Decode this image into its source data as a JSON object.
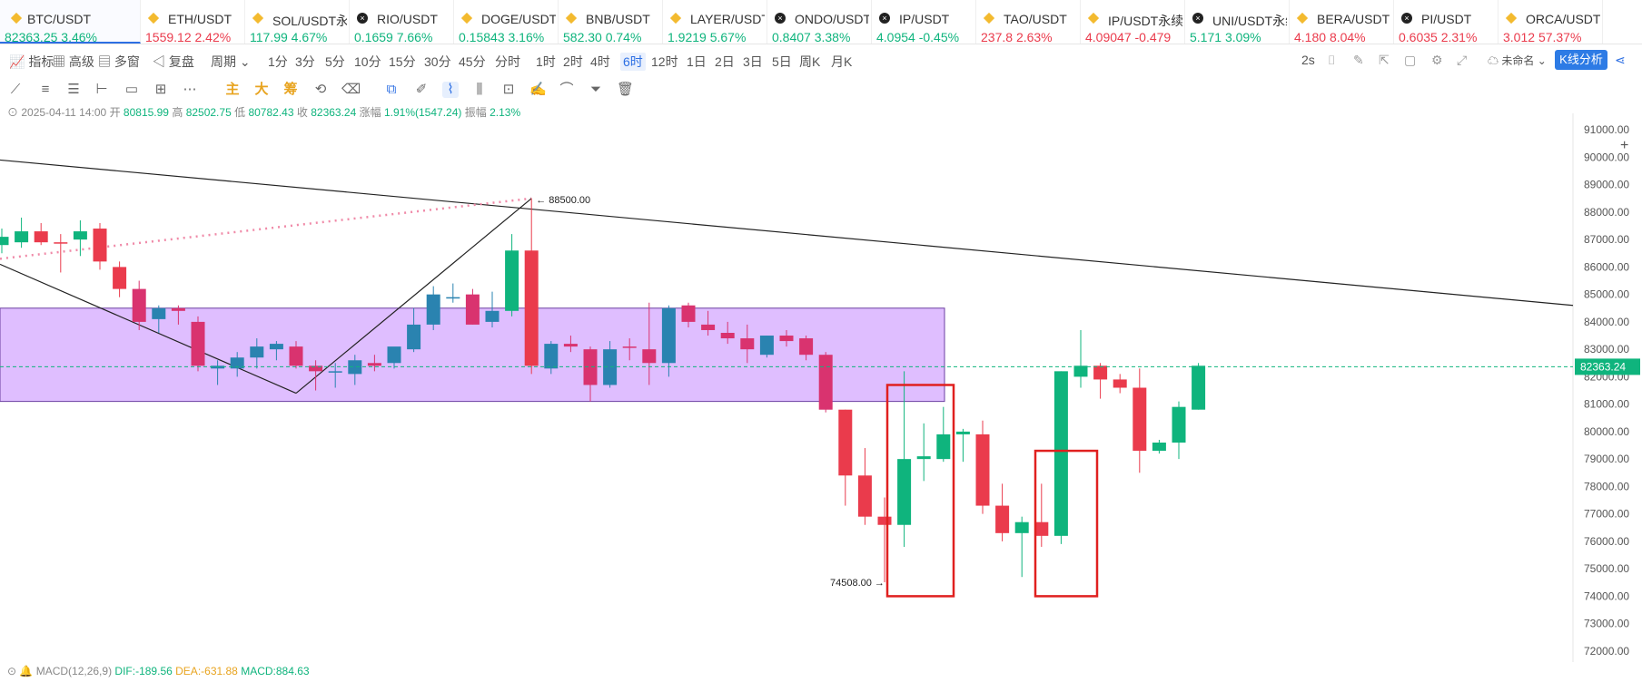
{
  "tickers": [
    {
      "symbol": "BTC/USDT",
      "price": "82363.25",
      "change": "3.46%",
      "dir": "up",
      "icon": "diamond-icon",
      "active": true
    },
    {
      "symbol": "ETH/USDT",
      "price": "1559.12",
      "change": "2.42%",
      "dir": "down",
      "icon": "diamond-icon"
    },
    {
      "symbol": "SOL/USDT永",
      "price": "117.99",
      "change": "4.67%",
      "dir": "up",
      "icon": "diamond-icon"
    },
    {
      "symbol": "RIO/USDT",
      "price": "0.1659",
      "change": "7.66%",
      "dir": "up",
      "icon": "x-circle-icon"
    },
    {
      "symbol": "DOGE/USDT",
      "price": "0.15843",
      "change": "3.16%",
      "dir": "up",
      "icon": "diamond-icon"
    },
    {
      "symbol": "BNB/USDT",
      "price": "582.30",
      "change": "0.74%",
      "dir": "up",
      "icon": "diamond-icon"
    },
    {
      "symbol": "LAYER/USDT",
      "price": "1.9219",
      "change": "5.67%",
      "dir": "up",
      "icon": "diamond-icon"
    },
    {
      "symbol": "ONDO/USDT",
      "price": "0.8407",
      "change": "3.38%",
      "dir": "up",
      "icon": "x-circle-icon"
    },
    {
      "symbol": "IP/USDT",
      "price": "4.0954",
      "change": "-0.45%",
      "dir": "up",
      "icon": "x-circle-icon"
    },
    {
      "symbol": "TAO/USDT",
      "price": "237.8",
      "change": "2.63%",
      "dir": "down",
      "icon": "diamond-icon"
    },
    {
      "symbol": "IP/USDT永续",
      "price": "4.09047",
      "change": "-0.479",
      "dir": "down",
      "icon": "diamond-icon"
    },
    {
      "symbol": "UNI/USDT永续",
      "price": "5.171",
      "change": "3.09%",
      "dir": "up",
      "icon": "x-circle-icon"
    },
    {
      "symbol": "BERA/USDT",
      "price": "4.180",
      "change": "8.04%",
      "dir": "down",
      "icon": "diamond-icon"
    },
    {
      "symbol": "PI/USDT",
      "price": "0.6035",
      "change": "2.31%",
      "dir": "down",
      "icon": "x-circle-icon"
    },
    {
      "symbol": "ORCA/USDT",
      "price": "3.012",
      "change": "57.37%",
      "dir": "down",
      "icon": "diamond-icon"
    }
  ],
  "toolbar": {
    "indicators": "指标",
    "advanced": "高级",
    "multi_window": "多窗",
    "replay": "复盘",
    "period": "周期",
    "intervals": [
      "1分",
      "3分",
      "5分",
      "10分",
      "15分",
      "30分",
      "45分",
      "分时",
      "1时",
      "2时",
      "4时",
      "6时",
      "12时",
      "1日",
      "2日",
      "3日",
      "5日",
      "周K",
      "月K"
    ],
    "selected_interval": "6时",
    "refresh": "2s",
    "layout_name": "未命名",
    "kline_button": "K线分析"
  },
  "drawing_tools": {
    "main": "主",
    "big": "大",
    "chip": "筹"
  },
  "info": {
    "datetime": "2025-04-11 14:00",
    "open_label": "开",
    "open": "80815.99",
    "high_label": "高",
    "high": "82502.75",
    "low_label": "低",
    "low": "80782.43",
    "close_label": "收",
    "close": "82363.24",
    "change_label": "涨幅",
    "change": "1.91%(1547.24)",
    "amp_label": "振幅",
    "amp": "2.13%"
  },
  "macd": {
    "label": "MACD(12,26,9)",
    "dif": "DIF:-189.56",
    "dea": "DEA:-631.88",
    "macd": "MACD:884.63"
  },
  "colors": {
    "up": "#0fb47d",
    "down": "#ea3b4c",
    "blue": "#2a83b0",
    "pink": "#d9336f",
    "zone": "#d9b3ff",
    "box": "#e0201f"
  },
  "chart_data": {
    "type": "candlestick",
    "ylim": [
      71600,
      91600
    ],
    "y_ticks": [
      91000,
      90000,
      89000,
      88000,
      87000,
      86000,
      85000,
      84000,
      83000,
      82000,
      81000,
      80000,
      79000,
      78000,
      77000,
      76000,
      75000,
      74000,
      73000,
      72000
    ],
    "last_price": 82363.24,
    "last_price_label": "82363.24",
    "high_annotation": {
      "value": 88500,
      "label": "88500.00"
    },
    "low_annotation": {
      "value": 74508,
      "label": "74508.00"
    },
    "zone": {
      "top": 84500,
      "bottom": 81100
    },
    "candles": [
      {
        "o": 86800,
        "h": 87400,
        "l": 86500,
        "c": 87100,
        "k": "up"
      },
      {
        "o": 86900,
        "h": 87800,
        "l": 86700,
        "c": 87300,
        "k": "up"
      },
      {
        "o": 87300,
        "h": 87600,
        "l": 86800,
        "c": 86900,
        "k": "down"
      },
      {
        "o": 86900,
        "h": 87200,
        "l": 85800,
        "c": 86900,
        "k": "down"
      },
      {
        "o": 87000,
        "h": 87700,
        "l": 86400,
        "c": 87300,
        "k": "up"
      },
      {
        "o": 87400,
        "h": 87600,
        "l": 85900,
        "c": 86200,
        "k": "down"
      },
      {
        "o": 86000,
        "h": 86200,
        "l": 84900,
        "c": 85200,
        "k": "down"
      },
      {
        "o": 85200,
        "h": 85500,
        "l": 83700,
        "c": 84000,
        "k": "pink"
      },
      {
        "o": 84100,
        "h": 84600,
        "l": 83600,
        "c": 84500,
        "k": "blue"
      },
      {
        "o": 84500,
        "h": 84600,
        "l": 83900,
        "c": 84400,
        "k": "pink"
      },
      {
        "o": 84000,
        "h": 84200,
        "l": 82200,
        "c": 82400,
        "k": "pink"
      },
      {
        "o": 82300,
        "h": 82600,
        "l": 81700,
        "c": 82400,
        "k": "blue"
      },
      {
        "o": 82300,
        "h": 82900,
        "l": 82000,
        "c": 82700,
        "k": "blue"
      },
      {
        "o": 82700,
        "h": 83400,
        "l": 82300,
        "c": 83100,
        "k": "blue"
      },
      {
        "o": 83000,
        "h": 83300,
        "l": 82600,
        "c": 83200,
        "k": "blue"
      },
      {
        "o": 83100,
        "h": 83300,
        "l": 82300,
        "c": 82400,
        "k": "pink"
      },
      {
        "o": 82400,
        "h": 82600,
        "l": 81500,
        "c": 82200,
        "k": "pink"
      },
      {
        "o": 82200,
        "h": 82500,
        "l": 81600,
        "c": 82200,
        "k": "blue"
      },
      {
        "o": 82100,
        "h": 82800,
        "l": 81700,
        "c": 82600,
        "k": "blue"
      },
      {
        "o": 82500,
        "h": 82800,
        "l": 82200,
        "c": 82400,
        "k": "pink"
      },
      {
        "o": 82500,
        "h": 83000,
        "l": 82300,
        "c": 83100,
        "k": "blue"
      },
      {
        "o": 83000,
        "h": 84500,
        "l": 82900,
        "c": 83900,
        "k": "blue"
      },
      {
        "o": 83900,
        "h": 85300,
        "l": 83700,
        "c": 85000,
        "k": "blue"
      },
      {
        "o": 84900,
        "h": 85400,
        "l": 84700,
        "c": 84900,
        "k": "blue"
      },
      {
        "o": 85000,
        "h": 85200,
        "l": 83900,
        "c": 83900,
        "k": "pink"
      },
      {
        "o": 84000,
        "h": 85100,
        "l": 83800,
        "c": 84400,
        "k": "blue"
      },
      {
        "o": 84400,
        "h": 87200,
        "l": 84200,
        "c": 86600,
        "k": "up"
      },
      {
        "o": 86600,
        "h": 88500,
        "l": 82100,
        "c": 82400,
        "k": "down"
      },
      {
        "o": 82300,
        "h": 83300,
        "l": 82100,
        "c": 83200,
        "k": "blue"
      },
      {
        "o": 83100,
        "h": 83500,
        "l": 82900,
        "c": 83200,
        "k": "pink"
      },
      {
        "o": 83000,
        "h": 83100,
        "l": 81100,
        "c": 81700,
        "k": "pink"
      },
      {
        "o": 81700,
        "h": 83300,
        "l": 81600,
        "c": 83000,
        "k": "blue"
      },
      {
        "o": 83100,
        "h": 83400,
        "l": 82600,
        "c": 83100,
        "k": "pink"
      },
      {
        "o": 83000,
        "h": 84700,
        "l": 81700,
        "c": 82500,
        "k": "pink"
      },
      {
        "o": 82500,
        "h": 84600,
        "l": 82000,
        "c": 84500,
        "k": "blue"
      },
      {
        "o": 84600,
        "h": 84700,
        "l": 83800,
        "c": 84000,
        "k": "pink"
      },
      {
        "o": 83900,
        "h": 84400,
        "l": 83500,
        "c": 83700,
        "k": "pink"
      },
      {
        "o": 83600,
        "h": 84000,
        "l": 83200,
        "c": 83400,
        "k": "pink"
      },
      {
        "o": 83400,
        "h": 83900,
        "l": 82500,
        "c": 83000,
        "k": "pink"
      },
      {
        "o": 82800,
        "h": 83500,
        "l": 82700,
        "c": 83500,
        "k": "blue"
      },
      {
        "o": 83500,
        "h": 83700,
        "l": 83100,
        "c": 83300,
        "k": "pink"
      },
      {
        "o": 83400,
        "h": 83500,
        "l": 82600,
        "c": 82800,
        "k": "pink"
      },
      {
        "o": 82800,
        "h": 82900,
        "l": 80700,
        "c": 80800,
        "k": "pink"
      },
      {
        "o": 80800,
        "h": 80800,
        "l": 77300,
        "c": 78400,
        "k": "down"
      },
      {
        "o": 78400,
        "h": 79400,
        "l": 76600,
        "c": 76900,
        "k": "down"
      },
      {
        "o": 76900,
        "h": 77600,
        "l": 74508,
        "c": 76600,
        "k": "down"
      },
      {
        "o": 76600,
        "h": 82200,
        "l": 75800,
        "c": 79000,
        "k": "up"
      },
      {
        "o": 79000,
        "h": 80300,
        "l": 78200,
        "c": 79100,
        "k": "up"
      },
      {
        "o": 79000,
        "h": 80900,
        "l": 78900,
        "c": 79900,
        "k": "up"
      },
      {
        "o": 79900,
        "h": 80100,
        "l": 78900,
        "c": 80000,
        "k": "up"
      },
      {
        "o": 79900,
        "h": 80400,
        "l": 77000,
        "c": 77300,
        "k": "down"
      },
      {
        "o": 77300,
        "h": 78100,
        "l": 76000,
        "c": 76300,
        "k": "down"
      },
      {
        "o": 76300,
        "h": 76900,
        "l": 74700,
        "c": 76700,
        "k": "up"
      },
      {
        "o": 76700,
        "h": 78100,
        "l": 75800,
        "c": 76200,
        "k": "down"
      },
      {
        "o": 76200,
        "h": 82200,
        "l": 75900,
        "c": 82200,
        "k": "up"
      },
      {
        "o": 82000,
        "h": 83700,
        "l": 81600,
        "c": 82400,
        "k": "up"
      },
      {
        "o": 82400,
        "h": 82500,
        "l": 81200,
        "c": 81900,
        "k": "down"
      },
      {
        "o": 81900,
        "h": 82100,
        "l": 81400,
        "c": 81600,
        "k": "down"
      },
      {
        "o": 81600,
        "h": 82300,
        "l": 78500,
        "c": 79300,
        "k": "down"
      },
      {
        "o": 79300,
        "h": 79700,
        "l": 79200,
        "c": 79600,
        "k": "up"
      },
      {
        "o": 79600,
        "h": 81100,
        "l": 79000,
        "c": 80900,
        "k": "up"
      },
      {
        "o": 80800,
        "h": 82500,
        "l": 80800,
        "c": 82400,
        "k": "up"
      }
    ]
  }
}
